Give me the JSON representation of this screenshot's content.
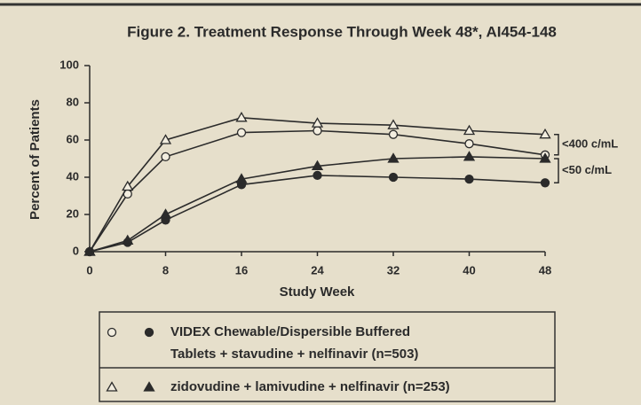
{
  "chart_data": {
    "type": "line",
    "title": "Figure 2.  Treatment Response Through Week 48*, AI454-148",
    "xlabel": "Study Week",
    "ylabel": "Percent of Patients",
    "x": [
      0,
      4,
      8,
      16,
      24,
      32,
      40,
      48
    ],
    "xlim": [
      0,
      48
    ],
    "xticks": [
      0,
      8,
      16,
      24,
      32,
      40,
      48
    ],
    "ylim": [
      0,
      100
    ],
    "yticks": [
      0,
      20,
      40,
      60,
      80,
      100
    ],
    "levels": [
      "<400 c/mL",
      "<50 c/mL"
    ],
    "color": "#2b2b2b",
    "series": [
      {
        "name": [
          "VIDEX Chewable/Dispersible Buffered",
          "Tablets + stavudine + nelfinavir (n=503)"
        ],
        "marker": "circle",
        "values_400": [
          0,
          31,
          51,
          64,
          65,
          63,
          58,
          52
        ],
        "values_50": [
          0,
          5,
          17,
          36,
          41,
          40,
          39,
          37
        ]
      },
      {
        "name": [
          "zidovudine + lamivudine + nelfinavir (n=253)"
        ],
        "marker": "triangle",
        "values_400": [
          0,
          35,
          60,
          72,
          69,
          68,
          65,
          63
        ],
        "values_50": [
          0,
          6,
          20,
          39,
          46,
          50,
          51,
          50
        ]
      }
    ]
  }
}
